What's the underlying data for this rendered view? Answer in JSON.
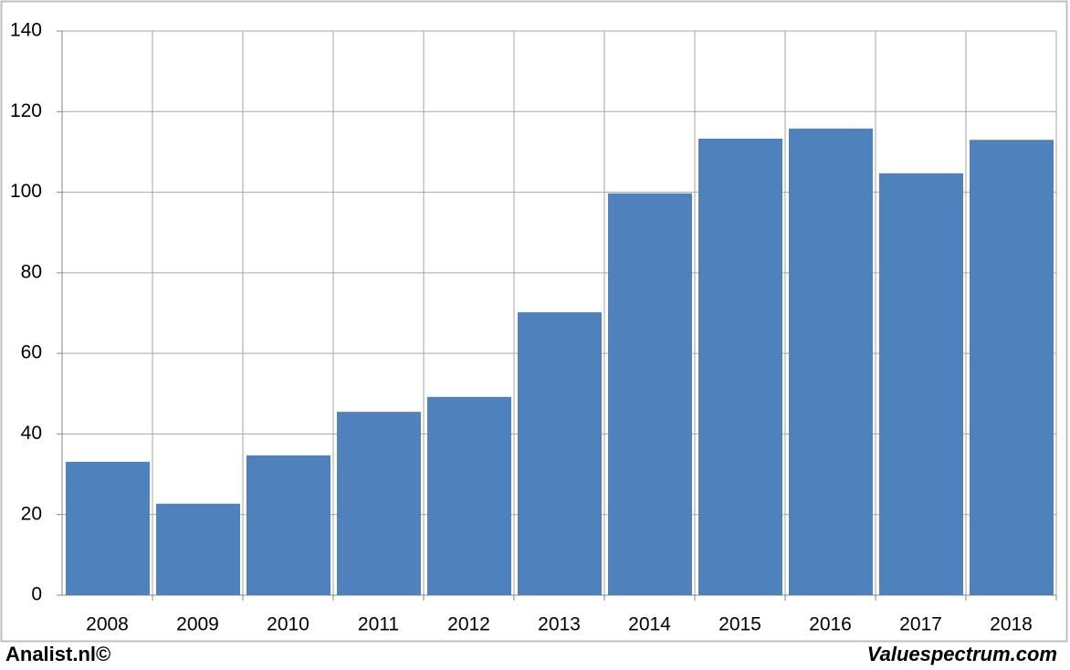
{
  "chart_data": {
    "type": "bar",
    "categories": [
      "2008",
      "2009",
      "2010",
      "2011",
      "2012",
      "2013",
      "2014",
      "2015",
      "2016",
      "2017",
      "2018"
    ],
    "values": [
      33.1,
      22.7,
      34.7,
      45.5,
      49.2,
      70.2,
      99.7,
      113.3,
      115.8,
      104.7,
      113.0
    ],
    "color": "#4f81bd",
    "ylim": [
      0,
      140
    ],
    "yticks": [
      0,
      20,
      40,
      60,
      80,
      100,
      120,
      140
    ],
    "grid": true,
    "footer_left": "Analist.nl©",
    "footer_right": "Valuespectrum.com"
  }
}
